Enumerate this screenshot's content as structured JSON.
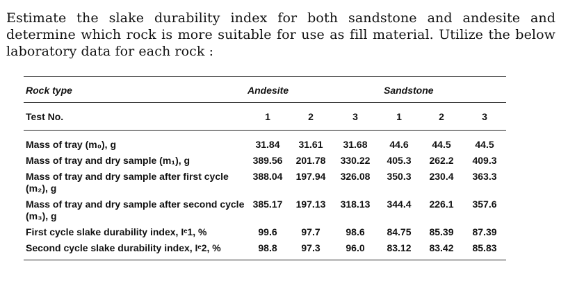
{
  "question": {
    "text": "Estimate the slake durability index for both sandstone and andesite and determine which rock is more suitable for use as fill material. Utilize the below laboratory data for each rock :"
  },
  "table": {
    "header": {
      "rock_type_label": "Rock type",
      "groups": [
        "Andesite",
        "Sandstone"
      ],
      "test_no_label": "Test No.",
      "test_numbers": [
        "1",
        "2",
        "3",
        "1",
        "2",
        "3"
      ]
    },
    "rows": [
      {
        "label": "Mass of tray (m₀), g",
        "values": [
          "31.84",
          "31.61",
          "31.68",
          "44.6",
          "44.5",
          "44.5"
        ]
      },
      {
        "label": "Mass of tray and dry sample (m₁), g",
        "values": [
          "389.56",
          "201.78",
          "330.22",
          "405.3",
          "262.2",
          "409.3"
        ]
      },
      {
        "label": "Mass of tray and dry sample after first cycle (m₂), g",
        "values": [
          "388.04",
          "197.94",
          "326.08",
          "350.3",
          "230.4",
          "363.3"
        ]
      },
      {
        "label": "Mass of tray and dry sample after second cycle (m₃), g",
        "values": [
          "385.17",
          "197.13",
          "318.13",
          "344.4",
          "226.1",
          "357.6"
        ]
      },
      {
        "label": "First cycle slake durability index, Iᵉ1, %",
        "values": [
          "99.6",
          "97.7",
          "98.6",
          "84.75",
          "85.39",
          "87.39"
        ]
      },
      {
        "label": "Second cycle slake durability index, Iᵉ2, %",
        "values": [
          "98.8",
          "97.3",
          "96.0",
          "83.12",
          "83.42",
          "85.83"
        ]
      }
    ]
  }
}
